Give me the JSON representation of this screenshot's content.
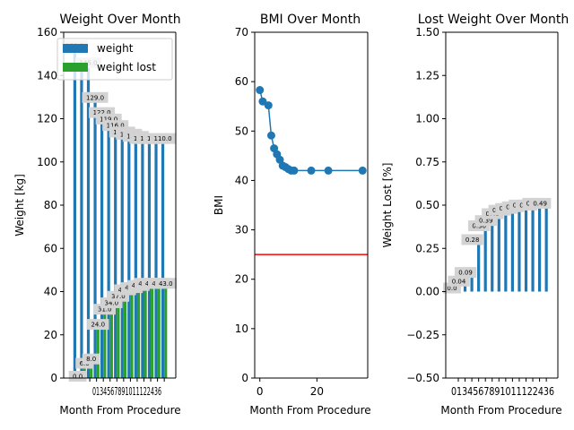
{
  "chart_data": [
    {
      "type": "bar",
      "title": "Weight Over Month",
      "xlabel": "Month From Procedure",
      "ylabel": "Weight [kg]",
      "categories": [
        "0",
        "1",
        "3",
        "4",
        "5",
        "6",
        "7",
        "8",
        "9",
        "10",
        "11",
        "12",
        "24",
        "36"
      ],
      "ylim": [
        0,
        160
      ],
      "yticks": [
        0,
        20,
        40,
        60,
        80,
        100,
        120,
        140,
        160
      ],
      "legend": "top-right",
      "series": [
        {
          "name": "weight",
          "color": "#1f77b4",
          "values": [
            153.0,
            147.0,
            145.0,
            129.0,
            122.0,
            119.0,
            116.0,
            113.0,
            112.0,
            111.0,
            110.0,
            110.0,
            110.0,
            110.0
          ],
          "labels": [
            "153.0",
            "",
            "145.0",
            "129.0",
            "122.0",
            "119.0",
            "116.0",
            "113.0",
            "112.0",
            "111.0",
            "110.0",
            "110.0",
            "110.0",
            "110.0"
          ]
        },
        {
          "name": "weight lost",
          "color": "#2ca02c",
          "values": [
            0.0,
            6.0,
            8.0,
            24.0,
            31.0,
            34.0,
            37.0,
            40.0,
            41.0,
            42.0,
            43.0,
            43.0,
            43.0,
            43.0
          ],
          "labels": [
            "0.0",
            "6.0",
            "8.0",
            "24.0",
            "31.0",
            "34.0",
            "37.0",
            "40.0",
            "41.0",
            "42.0",
            "43.0",
            "43.0",
            "43.0",
            "43.0"
          ]
        }
      ]
    },
    {
      "type": "line",
      "title": "BMI Over Month",
      "xlabel": "Month From Procedure",
      "ylabel": "BMI",
      "xlim": [
        -1.8,
        37.8
      ],
      "ylim": [
        0,
        70
      ],
      "xticks": [
        0,
        20
      ],
      "yticks": [
        0,
        10,
        20,
        30,
        40,
        50,
        60,
        70
      ],
      "series": [
        {
          "name": "",
          "color": "#1f77b4",
          "x": [
            0,
            1,
            3,
            4,
            5,
            6,
            7,
            8,
            9,
            10,
            11,
            12,
            18,
            24,
            36
          ],
          "y": [
            58.3,
            56.0,
            55.2,
            49.1,
            46.5,
            45.3,
            44.2,
            43.0,
            42.7,
            42.3,
            42.0,
            42.0,
            42.0,
            42.0,
            42.0
          ]
        }
      ],
      "reference_line": {
        "y": 25,
        "color": "#ff0000"
      }
    },
    {
      "type": "bar",
      "title": "Lost Weight Over Month",
      "xlabel": "Month From Procedure",
      "ylabel": "Weight Lost [%]",
      "categories": [
        "0",
        "1",
        "3",
        "4",
        "5",
        "6",
        "7",
        "8",
        "9",
        "10",
        "11",
        "12",
        "24",
        "36"
      ],
      "ylim": [
        -0.5,
        1.5
      ],
      "yticks": [
        -0.5,
        -0.25,
        0.0,
        0.25,
        0.5,
        0.75,
        1.0,
        1.25,
        1.5
      ],
      "ytick_labels": [
        "−0.50",
        "−0.25",
        "0.00",
        "0.25",
        "0.50",
        "0.75",
        "1.00",
        "1.25",
        "1.50"
      ],
      "series": [
        {
          "name": "",
          "color": "#1f77b4",
          "values": [
            0.0,
            0.04,
            0.09,
            0.28,
            0.36,
            0.39,
            0.43,
            0.45,
            0.46,
            0.47,
            0.48,
            0.48,
            0.49,
            0.49
          ],
          "labels": [
            "0.0",
            "0.04",
            "0.09",
            "0.28",
            "0.36",
            "0.39",
            "0.43",
            "0.45",
            "0.46",
            "0.47",
            "0.48",
            "0.48",
            "0.49",
            "0.49"
          ]
        }
      ]
    }
  ]
}
